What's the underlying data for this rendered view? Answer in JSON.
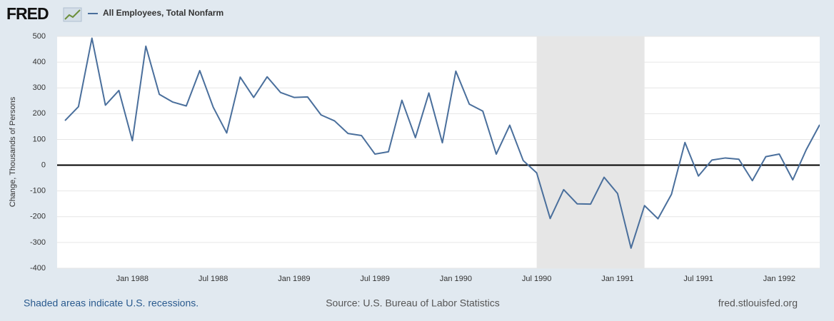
{
  "chart_data": {
    "type": "line",
    "logo": "FRED",
    "ylabel": "Change, Thousands of Persons",
    "x": [
      "1987-08",
      "1987-09",
      "1987-10",
      "1987-11",
      "1987-12",
      "1988-01",
      "1988-02",
      "1988-03",
      "1988-04",
      "1988-05",
      "1988-06",
      "1988-07",
      "1988-08",
      "1988-09",
      "1988-10",
      "1988-11",
      "1988-12",
      "1989-01",
      "1989-02",
      "1989-03",
      "1989-04",
      "1989-05",
      "1989-06",
      "1989-07",
      "1989-08",
      "1989-09",
      "1989-10",
      "1989-11",
      "1989-12",
      "1990-01",
      "1990-02",
      "1990-03",
      "1990-04",
      "1990-05",
      "1990-06",
      "1990-07",
      "1990-08",
      "1990-09",
      "1990-10",
      "1990-11",
      "1990-12",
      "1991-01",
      "1991-02",
      "1991-03",
      "1991-04",
      "1991-05",
      "1991-06",
      "1991-07",
      "1991-08",
      "1991-09",
      "1991-10",
      "1991-11",
      "1991-12",
      "1992-01",
      "1992-02",
      "1992-03",
      "1992-04"
    ],
    "series": [
      {
        "name": "All Employees, Total Nonfarm",
        "color": "#4a6f9c",
        "values": [
          173,
          227,
          493,
          233,
          290,
          95,
          462,
          275,
          245,
          230,
          367,
          225,
          125,
          342,
          263,
          343,
          282,
          263,
          265,
          195,
          172,
          123,
          115,
          43,
          52,
          252,
          107,
          280,
          87,
          365,
          237,
          210,
          43,
          155,
          18,
          -30,
          -207,
          -95,
          -150,
          -151,
          -47,
          -110,
          -322,
          -157,
          -208,
          -113,
          88,
          -42,
          20,
          28,
          23,
          -60,
          33,
          43,
          -57,
          60,
          157
        ]
      }
    ],
    "recessions": [
      {
        "start": "1990-07",
        "end": "1991-03"
      }
    ],
    "xlim": [
      "1987-08",
      "1992-04"
    ],
    "xticks": [
      {
        "value": "1988-01",
        "label": "Jan 1988"
      },
      {
        "value": "1988-07",
        "label": "Jul 1988"
      },
      {
        "value": "1989-01",
        "label": "Jan 1989"
      },
      {
        "value": "1989-07",
        "label": "Jul 1989"
      },
      {
        "value": "1990-01",
        "label": "Jan 1990"
      },
      {
        "value": "1990-07",
        "label": "Jul 1990"
      },
      {
        "value": "1991-01",
        "label": "Jan 1991"
      },
      {
        "value": "1991-07",
        "label": "Jul 1991"
      },
      {
        "value": "1992-01",
        "label": "Jan 1992"
      }
    ],
    "ylim": [
      -400,
      500
    ],
    "yticks": [
      -400,
      -300,
      -200,
      -100,
      0,
      100,
      200,
      300,
      400,
      500
    ],
    "grid": true,
    "footer": {
      "note": "Shaded areas indicate U.S. recessions.",
      "source": "Source: U.S. Bureau of Labor Statistics",
      "site": "fred.stlouisfed.org"
    }
  }
}
